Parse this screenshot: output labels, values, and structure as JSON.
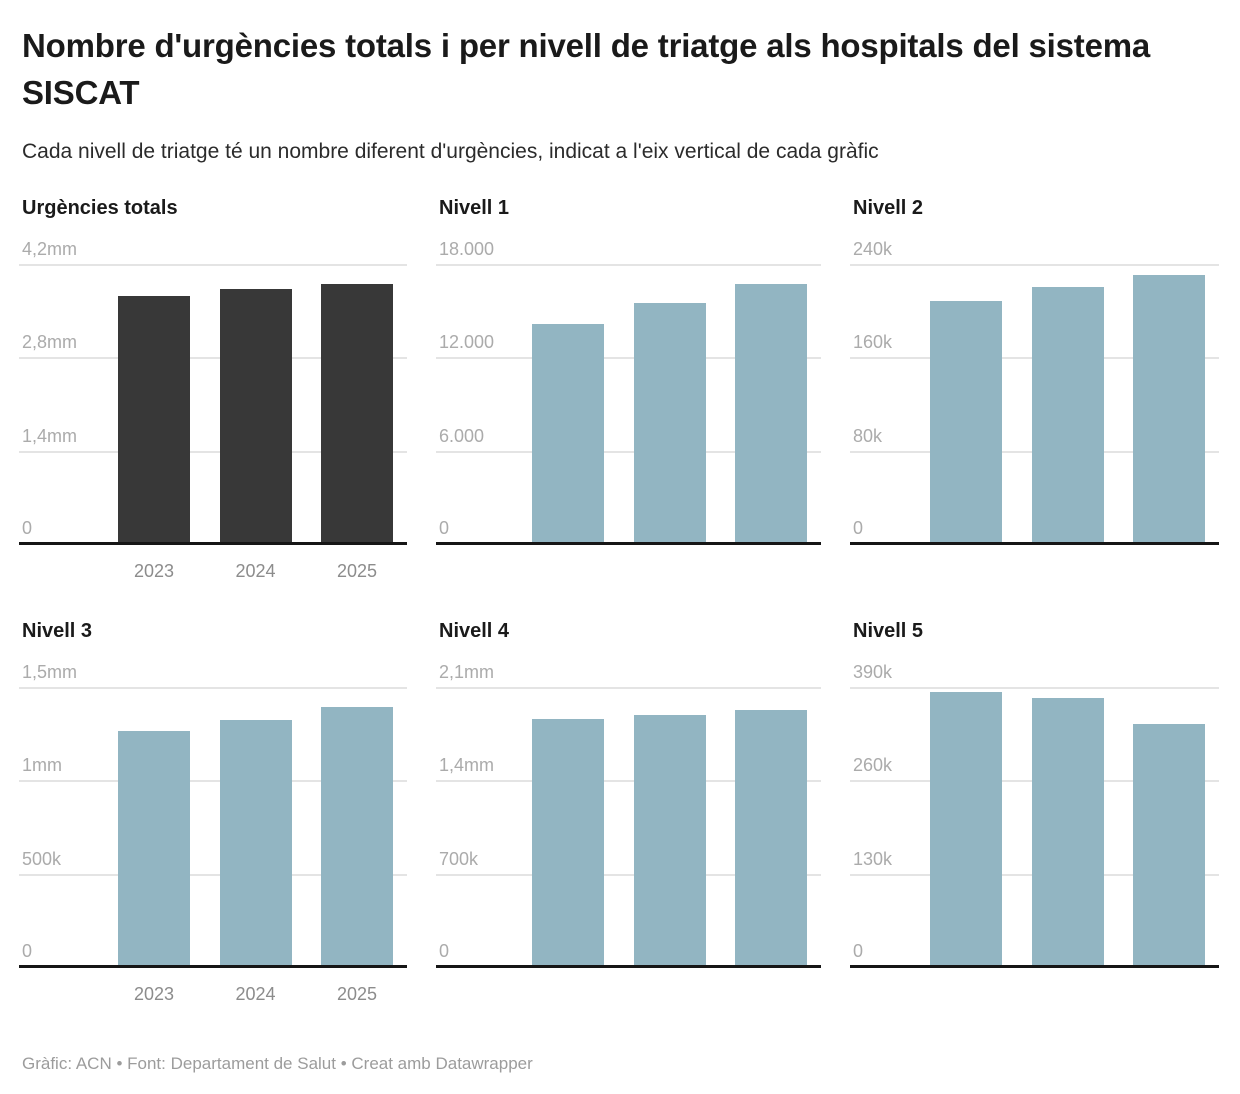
{
  "header": {
    "title": "Nombre d'urgències totals i per nivell de triatge als hospitals del sistema SISCAT",
    "subtitle": "Cada nivell de triatge té un nombre diferent d'urgències, indicat a l'eix vertical de cada gràfic"
  },
  "chart_data": [
    {
      "type": "bar",
      "title": "Urgències totals",
      "categories": [
        "2023",
        "2024",
        "2025"
      ],
      "values": [
        3740000,
        3850000,
        3920000
      ],
      "value_labels": [
        "3,74mm",
        "3,85mm",
        "3,92mm"
      ],
      "ylim": [
        0,
        4200000
      ],
      "ytick_labels": [
        "0",
        "1,4mm",
        "2,8mm",
        "4,2mm"
      ],
      "bar_color": "#383838",
      "show_x_labels": true,
      "grid": true,
      "legend": "none"
    },
    {
      "type": "bar",
      "title": "Nivell 1",
      "categories": [
        "2023",
        "2024",
        "2025"
      ],
      "values": [
        14200,
        15600,
        16800
      ],
      "value_labels": [
        "14.200",
        "15.600",
        "16.800"
      ],
      "ylim": [
        0,
        18000
      ],
      "ytick_labels": [
        "0",
        "6.000",
        "12.000",
        "18.000"
      ],
      "bar_color": "#92b5c2",
      "show_x_labels": false,
      "grid": true,
      "legend": "none"
    },
    {
      "type": "bar",
      "title": "Nivell 2",
      "categories": [
        "2023",
        "2024",
        "2025"
      ],
      "values": [
        210000,
        222000,
        232000
      ],
      "value_labels": [
        "210k",
        "222k",
        "232k"
      ],
      "ylim": [
        0,
        240000
      ],
      "ytick_labels": [
        "0",
        "80k",
        "160k",
        "240k"
      ],
      "bar_color": "#92b5c2",
      "show_x_labels": false,
      "grid": true,
      "legend": "none"
    },
    {
      "type": "bar",
      "title": "Nivell 3",
      "categories": [
        "2023",
        "2024",
        "2025"
      ],
      "values": [
        1270000,
        1330000,
        1400000
      ],
      "value_labels": [
        "1,27mm",
        "1,33mm",
        "1,4mm"
      ],
      "ylim": [
        0,
        1500000
      ],
      "ytick_labels": [
        "0",
        "500k",
        "1mm",
        "1,5mm"
      ],
      "bar_color": "#92b5c2",
      "show_x_labels": true,
      "grid": true,
      "legend": "none"
    },
    {
      "type": "bar",
      "title": "Nivell 4",
      "categories": [
        "2023",
        "2024",
        "2025"
      ],
      "values": [
        1870000,
        1900000,
        1940000
      ],
      "value_labels": [
        "1,87mm",
        "1,9mm",
        "1,94mm"
      ],
      "ylim": [
        0,
        2100000
      ],
      "ytick_labels": [
        "0",
        "700k",
        "1,4mm",
        "2,1mm"
      ],
      "bar_color": "#92b5c2",
      "show_x_labels": false,
      "grid": true,
      "legend": "none"
    },
    {
      "type": "bar",
      "title": "Nivell 5",
      "categories": [
        "2023",
        "2024",
        "2025"
      ],
      "values": [
        386000,
        378000,
        341000
      ],
      "value_labels": [
        "386k",
        "378k",
        "341k"
      ],
      "ylim": [
        0,
        390000
      ],
      "ytick_labels": [
        "0",
        "130k",
        "260k",
        "390k"
      ],
      "bar_color": "#92b5c2",
      "show_x_labels": false,
      "grid": true,
      "legend": "none"
    }
  ],
  "footer": {
    "credit": "Gràfic: ACN • Font: Departament de Salut • Creat amb Datawrapper"
  },
  "colors": {
    "dark_bar": "#383838",
    "blue_bar": "#92b5c2",
    "gridline": "#e4e4e4",
    "axis": "#161616",
    "ytick_text": "#ababab",
    "xlabel_text": "#8c8c8c",
    "footer_text": "#9c9c9c"
  }
}
